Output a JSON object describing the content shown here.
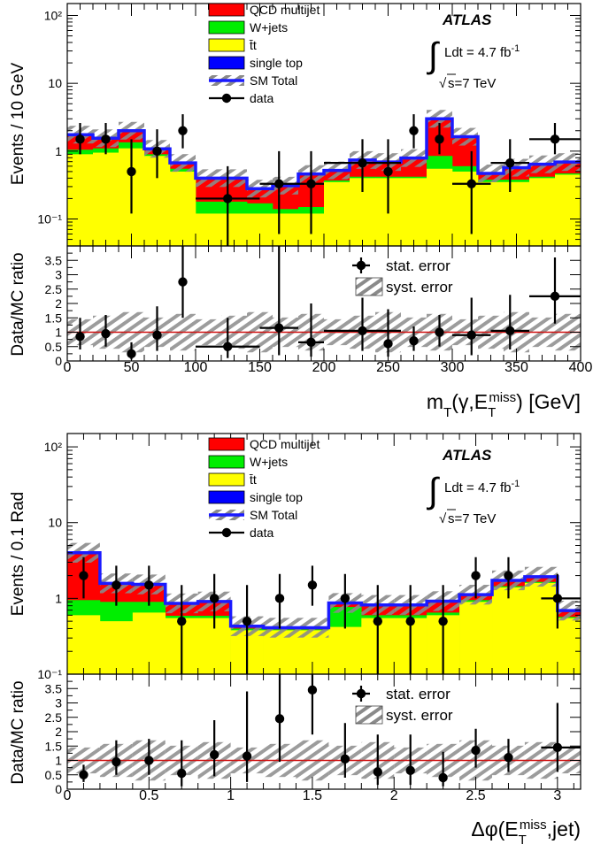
{
  "chart_data": [
    {
      "type": "bar",
      "top": {
        "ylabel": "Events / 10 GeV",
        "yscale": "log",
        "ylim": [
          0.04,
          150
        ],
        "ytick_labels": [
          "10⁻¹",
          "1",
          "10",
          "10²"
        ],
        "bins": [
          0,
          20,
          40,
          60,
          80,
          100,
          120,
          140,
          160,
          180,
          200,
          220,
          240,
          260,
          280,
          300,
          320,
          340,
          360,
          380,
          400
        ],
        "stack": [
          {
            "name": "t̄t",
            "color": "#ffff00",
            "values": [
              0.9,
              0.95,
              1.1,
              0.85,
              0.5,
              0.12,
              0.12,
              0.12,
              0.12,
              0.12,
              0.35,
              0.4,
              0.4,
              0.4,
              0.55,
              0.5,
              0.35,
              0.35,
              0.4,
              0.45
            ]
          },
          {
            "name": "W+jets",
            "color": "#00ee00",
            "values": [
              0.15,
              0.15,
              0.25,
              0.05,
              0.05,
              0.06,
              0.06,
              0.05,
              0.02,
              0.03,
              0.02,
              0.02,
              0.02,
              0.02,
              0.3,
              0.1,
              0.03,
              0.03,
              0.02,
              0.02
            ]
          },
          {
            "name": "QCD multijet",
            "color": "#ff0000",
            "values": [
              0.65,
              0.4,
              0.6,
              0.15,
              0.1,
              0.2,
              0.2,
              0.1,
              0.16,
              0.3,
              0.13,
              0.3,
              0.25,
              0.35,
              2.1,
              1.0,
              0.07,
              0.17,
              0.2,
              0.2
            ]
          },
          {
            "name": "single top",
            "color": "#0000ff",
            "values": [
              0.05,
              0.05,
              0.05,
              0.03,
              0.02,
              0.02,
              0.02,
              0.01,
              0.01,
              0.01,
              0.02,
              0.02,
              0.02,
              0.02,
              0.05,
              0.03,
              0.02,
              0.02,
              0.02,
              0.02
            ]
          }
        ],
        "sm_total": [
          1.75,
          1.55,
          2.0,
          1.08,
          0.67,
          0.4,
          0.4,
          0.28,
          0.31,
          0.46,
          0.52,
          0.74,
          0.69,
          0.79,
          3.0,
          1.63,
          0.47,
          0.57,
          0.64,
          0.69
        ],
        "data_points": [
          {
            "x": 10,
            "y": 1.5,
            "lo": 0.9,
            "hi": 2.6
          },
          {
            "x": 30,
            "y": 1.5,
            "lo": 0.9,
            "hi": 2.6
          },
          {
            "x": 50,
            "y": 0.5,
            "lo": 0.12,
            "hi": 1.5
          },
          {
            "x": 70,
            "y": 1.0,
            "lo": 0.4,
            "hi": 2.1
          },
          {
            "x": 90,
            "y": 2.0,
            "lo": 1.1,
            "hi": 3.5
          },
          {
            "x": 125,
            "y": 0.2,
            "lo": 0.04,
            "hi": 0.6,
            "xlo": 100,
            "xhi": 150
          },
          {
            "x": 165,
            "y": 0.33,
            "lo": 0.06,
            "hi": 1.0,
            "xlo": 150,
            "xhi": 180
          },
          {
            "x": 190,
            "y": 0.33,
            "lo": 0.06,
            "hi": 1.0,
            "xlo": 180,
            "xhi": 200
          },
          {
            "x": 230,
            "y": 0.67,
            "lo": 0.25,
            "hi": 1.5,
            "xlo": 200,
            "xhi": 260
          },
          {
            "x": 250,
            "y": 0.5,
            "lo": 0.12,
            "hi": 1.5
          },
          {
            "x": 270,
            "y": 2.0,
            "lo": 1.1,
            "hi": 3.5
          },
          {
            "x": 290,
            "y": 1.5,
            "lo": 0.9,
            "hi": 2.6
          },
          {
            "x": 315,
            "y": 0.33,
            "lo": 0.06,
            "hi": 1.0,
            "xlo": 300,
            "xhi": 330
          },
          {
            "x": 345,
            "y": 0.67,
            "lo": 0.25,
            "hi": 1.5,
            "xlo": 330,
            "xhi": 360
          },
          {
            "x": 380,
            "y": 1.5,
            "lo": 0.9,
            "hi": 2.6,
            "xlo": 360,
            "xhi": 400
          }
        ],
        "legend": [
          "QCD multijet",
          "W+jets",
          "t̄t",
          "single top",
          "SM Total",
          "data"
        ]
      },
      "ratio": {
        "ylabel": "Data/MC ratio",
        "ylim": [
          0,
          4
        ],
        "yticks": [
          0,
          0.5,
          1,
          1.5,
          2,
          2.5,
          3,
          3.5
        ],
        "ytick_labels": [
          "0",
          "0.5",
          "1",
          "1.5",
          "2",
          "2.5",
          "3",
          "3.5"
        ],
        "points": [
          {
            "x": 10,
            "y": 0.85,
            "lo": 0.4,
            "hi": 1.5
          },
          {
            "x": 30,
            "y": 0.95,
            "lo": 0.5,
            "hi": 1.6
          },
          {
            "x": 50,
            "y": 0.25,
            "lo": 0.05,
            "hi": 0.65
          },
          {
            "x": 70,
            "y": 0.9,
            "lo": 0.35,
            "hi": 1.9
          },
          {
            "x": 90,
            "y": 2.75,
            "lo": 1.5,
            "hi": 4.0
          },
          {
            "x": 125,
            "y": 0.5,
            "lo": 0.1,
            "hi": 1.5,
            "xlo": 100,
            "xhi": 150
          },
          {
            "x": 165,
            "y": 1.15,
            "lo": 0.2,
            "hi": 4.0,
            "xlo": 150,
            "xhi": 180
          },
          {
            "x": 190,
            "y": 0.65,
            "lo": 0.15,
            "hi": 2.0,
            "xlo": 180,
            "xhi": 200
          },
          {
            "x": 230,
            "y": 1.05,
            "lo": 0.35,
            "hi": 2.2,
            "xlo": 200,
            "xhi": 260
          },
          {
            "x": 250,
            "y": 0.6,
            "lo": 0.15,
            "hi": 1.8
          },
          {
            "x": 270,
            "y": 0.7,
            "lo": 0.35,
            "hi": 1.2
          },
          {
            "x": 290,
            "y": 1.0,
            "lo": 0.5,
            "hi": 1.6
          },
          {
            "x": 315,
            "y": 0.9,
            "lo": 0.2,
            "hi": 2.2,
            "xlo": 300,
            "xhi": 330
          },
          {
            "x": 345,
            "y": 1.05,
            "lo": 0.4,
            "hi": 2.3,
            "xlo": 330,
            "xhi": 360
          },
          {
            "x": 380,
            "y": 2.25,
            "lo": 1.3,
            "hi": 3.6,
            "xlo": 360,
            "xhi": 400
          }
        ],
        "legend": [
          "stat. error",
          "syst. error"
        ]
      },
      "xlabel": "m_T(γ,E_T^miss) [GeV]",
      "xlim": [
        0,
        400
      ],
      "xticks": [
        0,
        50,
        100,
        150,
        200,
        250,
        300,
        350,
        400
      ],
      "xtick_labels": [
        "0",
        "50",
        "100",
        "150",
        "200",
        "250",
        "300",
        "350",
        "400"
      ],
      "atlas": {
        "label": "ATLAS",
        "lumi": "Ldt = 4.7 fb",
        "lumi_sup": "-1",
        "energy": "s=7 TeV"
      }
    },
    {
      "type": "bar",
      "top": {
        "ylabel": "Events / 0.1 Rad",
        "yscale": "log",
        "ylim": [
          0.1,
          150
        ],
        "ytick_labels": [
          "10⁻¹",
          "1",
          "10",
          "10²"
        ],
        "bins": [
          0,
          0.2,
          0.4,
          0.6,
          0.8,
          1.0,
          1.2,
          1.4,
          1.6,
          1.8,
          2.0,
          2.2,
          2.4,
          2.6,
          2.8,
          3.0,
          3.1416
        ],
        "stack": [
          {
            "name": "t̄t",
            "color": "#ffff00",
            "values": [
              0.6,
              0.5,
              0.65,
              0.55,
              0.55,
              0.38,
              0.38,
              0.38,
              0.42,
              0.55,
              0.55,
              0.6,
              0.9,
              1.4,
              1.6,
              0.55
            ]
          },
          {
            "name": "W+jets",
            "color": "#00ee00",
            "values": [
              0.35,
              0.4,
              0.25,
              0.04,
              0.04,
              0.02,
              0.01,
              0.01,
              0.35,
              0.05,
              0.05,
              0.05,
              0.05,
              0.05,
              0.05,
              0.02
            ]
          },
          {
            "name": "QCD multijet",
            "color": "#ff0000",
            "values": [
              3.0,
              0.65,
              0.6,
              0.25,
              0.3,
              0.02,
              0.01,
              0.01,
              0.08,
              0.2,
              0.2,
              0.25,
              0.15,
              0.25,
              0.25,
              0.1
            ]
          },
          {
            "name": "single top",
            "color": "#0000ff",
            "values": [
              0.05,
              0.03,
              0.03,
              0.02,
              0.02,
              0.01,
              0.01,
              0.01,
              0.02,
              0.02,
              0.02,
              0.02,
              0.02,
              0.03,
              0.03,
              0.02
            ]
          }
        ],
        "sm_total": [
          4.0,
          1.58,
          1.53,
          0.86,
          0.91,
          0.43,
          0.41,
          0.41,
          0.87,
          0.82,
          0.82,
          0.92,
          1.12,
          1.73,
          1.93,
          0.69
        ],
        "data_points": [
          {
            "x": 0.1,
            "y": 2.0,
            "lo": 1.0,
            "hi": 3.5
          },
          {
            "x": 0.3,
            "y": 1.5,
            "lo": 0.8,
            "hi": 2.7
          },
          {
            "x": 0.5,
            "y": 1.5,
            "lo": 0.8,
            "hi": 2.7
          },
          {
            "x": 0.7,
            "y": 0.5,
            "lo": 0.1,
            "hi": 1.5
          },
          {
            "x": 0.9,
            "y": 1.0,
            "lo": 0.4,
            "hi": 2.1
          },
          {
            "x": 1.1,
            "y": 0.5,
            "lo": 0.1,
            "hi": 1.5
          },
          {
            "x": 1.3,
            "y": 1.0,
            "lo": 0.4,
            "hi": 2.1
          },
          {
            "x": 1.5,
            "y": 1.5,
            "lo": 0.8,
            "hi": 2.7
          },
          {
            "x": 1.7,
            "y": 1.0,
            "lo": 0.4,
            "hi": 2.1
          },
          {
            "x": 1.9,
            "y": 0.5,
            "lo": 0.1,
            "hi": 1.5
          },
          {
            "x": 2.1,
            "y": 0.5,
            "lo": 0.1,
            "hi": 1.5
          },
          {
            "x": 2.3,
            "y": 0.5,
            "lo": 0.1,
            "hi": 1.5
          },
          {
            "x": 2.5,
            "y": 2.0,
            "lo": 1.0,
            "hi": 3.5
          },
          {
            "x": 2.7,
            "y": 2.0,
            "lo": 1.0,
            "hi": 3.5
          },
          {
            "x": 3.0,
            "y": 1.0,
            "lo": 0.4,
            "hi": 2.1,
            "xlo": 2.9,
            "xhi": 3.1416
          }
        ],
        "legend": [
          "QCD multijet",
          "W+jets",
          "t̄t",
          "single top",
          "SM Total",
          "data"
        ]
      },
      "ratio": {
        "ylabel": "Data/MC ratio",
        "ylim": [
          0,
          4
        ],
        "yticks": [
          0,
          0.5,
          1,
          1.5,
          2,
          2.5,
          3,
          3.5
        ],
        "ytick_labels": [
          "0",
          "0.5",
          "1",
          "1.5",
          "2",
          "2.5",
          "3",
          "3.5"
        ],
        "points": [
          {
            "x": 0.1,
            "y": 0.5,
            "lo": 0.25,
            "hi": 0.85
          },
          {
            "x": 0.3,
            "y": 0.95,
            "lo": 0.5,
            "hi": 1.7
          },
          {
            "x": 0.5,
            "y": 1.0,
            "lo": 0.5,
            "hi": 1.75
          },
          {
            "x": 0.7,
            "y": 0.55,
            "lo": 0.1,
            "hi": 1.7
          },
          {
            "x": 0.9,
            "y": 1.2,
            "lo": 0.45,
            "hi": 2.4
          },
          {
            "x": 1.1,
            "y": 1.15,
            "lo": 0.25,
            "hi": 3.4
          },
          {
            "x": 1.3,
            "y": 2.45,
            "lo": 0.95,
            "hi": 4.0
          },
          {
            "x": 1.5,
            "y": 3.45,
            "lo": 1.9,
            "hi": 4.0
          },
          {
            "x": 1.7,
            "y": 1.05,
            "lo": 0.4,
            "hi": 2.3
          },
          {
            "x": 1.9,
            "y": 0.6,
            "lo": 0.15,
            "hi": 1.9
          },
          {
            "x": 2.1,
            "y": 0.65,
            "lo": 0.15,
            "hi": 1.9
          },
          {
            "x": 2.3,
            "y": 0.4,
            "lo": 0.1,
            "hi": 1.3
          },
          {
            "x": 2.5,
            "y": 1.35,
            "lo": 0.75,
            "hi": 2.1
          },
          {
            "x": 2.7,
            "y": 1.1,
            "lo": 0.6,
            "hi": 1.75
          },
          {
            "x": 3.0,
            "y": 1.45,
            "lo": 0.6,
            "hi": 3.0,
            "xlo": 2.9,
            "xhi": 3.1416
          }
        ],
        "legend": [
          "stat. error",
          "syst. error"
        ]
      },
      "xlabel": "Δφ(E_T^miss,jet)",
      "xlim": [
        0,
        3.1416
      ],
      "xticks": [
        0,
        0.5,
        1,
        1.5,
        2,
        2.5,
        3
      ],
      "xtick_labels": [
        "0",
        "0.5",
        "1",
        "1.5",
        "2",
        "2.5",
        "3"
      ],
      "atlas": {
        "label": "ATLAS",
        "lumi": "Ldt = 4.7 fb",
        "lumi_sup": "-1",
        "energy": "s=7 TeV"
      }
    }
  ]
}
